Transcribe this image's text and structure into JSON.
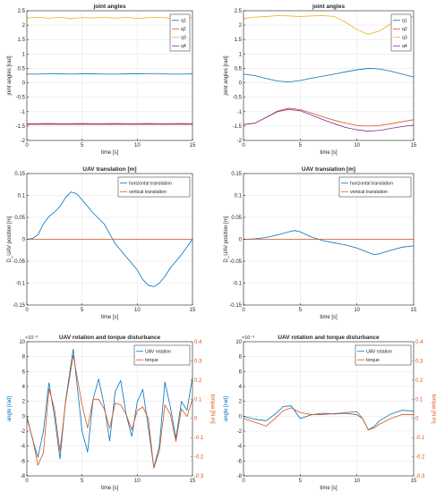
{
  "colors": {
    "blue": "#0072BD",
    "red": "#D95319",
    "yellow": "#EDB120",
    "purple": "#7E2F8E",
    "axis": "#262626",
    "grid": "#E6E6E6"
  },
  "chart_data": [
    {
      "type": "line",
      "title": "joint angles",
      "xlabel": "time [s]",
      "ylabel": "joint angles [rad]",
      "xlim": [
        0,
        15
      ],
      "ylim": [
        -2,
        2.5
      ],
      "xticks": [
        0,
        5,
        10,
        15
      ],
      "yticks": [
        -2,
        -1.5,
        -1,
        -0.5,
        0,
        0.5,
        1,
        1.5,
        2,
        2.5
      ],
      "ytick_labels": [
        "-2",
        "-1.5",
        "-1",
        "-0.5",
        "0",
        "0.5",
        "1",
        "1.5",
        "2",
        "2.5"
      ],
      "grid": true,
      "legend": "top-right",
      "series": [
        {
          "name": "q1",
          "color": "blue",
          "x": [
            0,
            1,
            2,
            3,
            4,
            5,
            6,
            7,
            8,
            9,
            10,
            11,
            12,
            13,
            14,
            15
          ],
          "y": [
            0.3,
            0.3,
            0.32,
            0.31,
            0.3,
            0.31,
            0.31,
            0.3,
            0.3,
            0.31,
            0.31,
            0.32,
            0.32,
            0.3,
            0.3,
            0.31
          ]
        },
        {
          "name": "q2",
          "color": "red",
          "x": [
            0,
            1,
            2,
            3,
            4,
            5,
            6,
            7,
            8,
            9,
            10,
            11,
            12,
            13,
            14,
            15
          ],
          "y": [
            -1.42,
            -1.42,
            -1.41,
            -1.42,
            -1.42,
            -1.41,
            -1.42,
            -1.42,
            -1.41,
            -1.42,
            -1.42,
            -1.41,
            -1.42,
            -1.42,
            -1.41,
            -1.42
          ]
        },
        {
          "name": "q3",
          "color": "yellow",
          "x": [
            0,
            1,
            2,
            3,
            4,
            5,
            6,
            7,
            8,
            9,
            10,
            11,
            12,
            13,
            14,
            15
          ],
          "y": [
            2.25,
            2.27,
            2.24,
            2.27,
            2.23,
            2.26,
            2.25,
            2.27,
            2.24,
            2.27,
            2.23,
            2.26,
            2.27,
            2.24,
            2.26,
            2.25
          ]
        },
        {
          "name": "q4",
          "color": "purple",
          "x": [
            0,
            1,
            2,
            3,
            4,
            5,
            6,
            7,
            8,
            9,
            10,
            11,
            12,
            13,
            14,
            15
          ],
          "y": [
            -1.44,
            -1.44,
            -1.44,
            -1.44,
            -1.44,
            -1.44,
            -1.44,
            -1.44,
            -1.44,
            -1.44,
            -1.44,
            -1.44,
            -1.44,
            -1.44,
            -1.44,
            -1.44
          ]
        }
      ]
    },
    {
      "type": "line",
      "title": "joint angles",
      "xlabel": "time [s]",
      "ylabel": "joint angles [rad]",
      "xlim": [
        0,
        15
      ],
      "ylim": [
        -2,
        2.5
      ],
      "xticks": [
        0,
        5,
        10,
        15
      ],
      "yticks": [
        -2,
        -1.5,
        -1,
        -0.5,
        0,
        0.5,
        1,
        1.5,
        2,
        2.5
      ],
      "ytick_labels": [
        "-2",
        "-1.5",
        "-1",
        "-0.5",
        "0",
        "0.5",
        "1",
        "1.5",
        "2",
        "2.5"
      ],
      "grid": true,
      "legend": "top-right",
      "series": [
        {
          "name": "q1",
          "color": "blue",
          "x": [
            0,
            1,
            2,
            3,
            4,
            5,
            6,
            7,
            8,
            9,
            10,
            11,
            12,
            13,
            14,
            15
          ],
          "y": [
            0.3,
            0.25,
            0.15,
            0.06,
            0.03,
            0.08,
            0.16,
            0.23,
            0.3,
            0.38,
            0.45,
            0.5,
            0.48,
            0.4,
            0.3,
            0.2
          ]
        },
        {
          "name": "q2",
          "color": "red",
          "x": [
            0,
            1,
            2,
            3,
            4,
            5,
            6,
            7,
            8,
            9,
            10,
            11,
            12,
            13,
            14,
            15
          ],
          "y": [
            -1.45,
            -1.4,
            -1.2,
            -0.98,
            -0.88,
            -0.93,
            -1.05,
            -1.18,
            -1.3,
            -1.4,
            -1.48,
            -1.5,
            -1.48,
            -1.42,
            -1.35,
            -1.28
          ]
        },
        {
          "name": "q3",
          "color": "yellow",
          "x": [
            0,
            1,
            2,
            3,
            4,
            5,
            6,
            7,
            8,
            9,
            10,
            11,
            12,
            13,
            14,
            15
          ],
          "y": [
            2.23,
            2.28,
            2.3,
            2.33,
            2.32,
            2.3,
            2.32,
            2.33,
            2.3,
            2.1,
            1.85,
            1.68,
            1.8,
            2.05,
            2.22,
            2.3
          ]
        },
        {
          "name": "q4",
          "color": "purple",
          "x": [
            0,
            1,
            2,
            3,
            4,
            5,
            6,
            7,
            8,
            9,
            10,
            11,
            12,
            13,
            14,
            15
          ],
          "y": [
            -1.45,
            -1.4,
            -1.2,
            -1.0,
            -0.92,
            -0.97,
            -1.12,
            -1.28,
            -1.42,
            -1.55,
            -1.63,
            -1.68,
            -1.65,
            -1.58,
            -1.52,
            -1.47
          ]
        }
      ]
    },
    {
      "type": "line",
      "title": "UAV translation [m]",
      "xlabel": "time [s]",
      "ylabel": "D_UAV position [m]",
      "xlim": [
        0,
        15
      ],
      "ylim": [
        -0.15,
        0.15
      ],
      "xticks": [
        0,
        5,
        10,
        15
      ],
      "yticks": [
        -0.15,
        -0.1,
        -0.05,
        0,
        0.05,
        0.1,
        0.15
      ],
      "ytick_labels": [
        "-0.15",
        "-0.1",
        "-0.05",
        "0",
        "0.05",
        "0.1",
        "0.15"
      ],
      "grid": true,
      "legend": "top-right",
      "series": [
        {
          "name": "horizontal translation",
          "color": "blue",
          "x": [
            0,
            0.5,
            1,
            1.5,
            2,
            2.5,
            3,
            3.5,
            4,
            4.5,
            5,
            6,
            7,
            8,
            9,
            10,
            10.5,
            11,
            11.5,
            12,
            12.5,
            13,
            14,
            15
          ],
          "y": [
            0,
            0.002,
            0.01,
            0.035,
            0.052,
            0.062,
            0.075,
            0.095,
            0.108,
            0.104,
            0.09,
            0.06,
            0.035,
            -0.01,
            -0.04,
            -0.07,
            -0.092,
            -0.105,
            -0.108,
            -0.1,
            -0.085,
            -0.065,
            -0.035,
            0
          ]
        },
        {
          "name": "vertical translation",
          "color": "red",
          "x": [
            0,
            15
          ],
          "y": [
            0,
            0
          ]
        }
      ]
    },
    {
      "type": "line",
      "title": "UAV translation [m]",
      "xlabel": "time [s]",
      "ylabel": "D_UAV position [m]",
      "xlim": [
        0,
        15
      ],
      "ylim": [
        -0.15,
        0.15
      ],
      "xticks": [
        0,
        5,
        10,
        15
      ],
      "yticks": [
        -0.15,
        -0.1,
        -0.05,
        0,
        0.05,
        0.1,
        0.15
      ],
      "ytick_labels": [
        "-0.15",
        "-0.1",
        "-0.05",
        "0",
        "0.05",
        "0.1",
        "0.15"
      ],
      "grid": true,
      "legend": "top-right",
      "series": [
        {
          "name": "horizontal translation",
          "color": "blue",
          "x": [
            0,
            1,
            2,
            3,
            4,
            4.5,
            5,
            6,
            7,
            8,
            9,
            10,
            11,
            11.5,
            12,
            13,
            14,
            15
          ],
          "y": [
            0,
            0.001,
            0.004,
            0.01,
            0.017,
            0.02,
            0.017,
            0.005,
            -0.003,
            -0.008,
            -0.013,
            -0.02,
            -0.03,
            -0.035,
            -0.033,
            -0.025,
            -0.018,
            -0.015
          ]
        },
        {
          "name": "vertical translation",
          "color": "red",
          "x": [
            0,
            15
          ],
          "y": [
            0,
            0
          ]
        }
      ]
    },
    {
      "type": "line",
      "title": "UAV rotation and torque disturbance",
      "xlabel": "time [s]",
      "ylabel": "angle [rad]",
      "y2label": "torque [N m]",
      "exponent": "×10⁻³",
      "xlim": [
        0,
        15
      ],
      "ylim": [
        -8,
        10
      ],
      "y2lim": [
        -0.3,
        0.4
      ],
      "xticks": [
        0,
        5,
        10,
        15
      ],
      "yticks": [
        -8,
        -6,
        -4,
        -2,
        0,
        2,
        4,
        6,
        8,
        10
      ],
      "ytick_labels": [
        "-8",
        "-6",
        "-4",
        "-2",
        "0",
        "2",
        "4",
        "6",
        "8",
        "10"
      ],
      "y2ticks": [
        -0.3,
        -0.2,
        -0.1,
        0,
        0.1,
        0.2,
        0.3,
        0.4
      ],
      "y2tick_labels": [
        "-0.3",
        "-0.2",
        "-0.1",
        "0",
        "0.1",
        "0.2",
        "0.3",
        "0.4"
      ],
      "grid": true,
      "legend": "top-right",
      "series": [
        {
          "name": "UAV rotation",
          "color": "blue",
          "axis": "left",
          "x": [
            0,
            0.5,
            1,
            1.5,
            2,
            2.5,
            3,
            3.5,
            4.2,
            5,
            5.5,
            6,
            6.5,
            7,
            7.5,
            8,
            8.5,
            9,
            9.5,
            10,
            10.5,
            11,
            11.5,
            12,
            12.5,
            13,
            13.5,
            14,
            14.5,
            15
          ],
          "y": [
            0,
            -3,
            -5.5,
            -2,
            4.5,
            0,
            -5.7,
            2,
            9,
            -2,
            -4.8,
            2.3,
            5,
            1.5,
            -3.3,
            3.3,
            4.8,
            0.2,
            -2.7,
            1.9,
            3.6,
            -1.5,
            -6.9,
            -4,
            4.6,
            1.2,
            -3,
            2,
            0.8,
            5.2
          ]
        },
        {
          "name": "torque",
          "color": "red",
          "axis": "right",
          "x": [
            0,
            0.5,
            1,
            1.5,
            2,
            2.5,
            3,
            3.5,
            4.2,
            5,
            5.5,
            6,
            6.5,
            7,
            7.5,
            8,
            8.5,
            9,
            9.5,
            10,
            10.5,
            11,
            11.5,
            12,
            12.5,
            13,
            13.5,
            14,
            14.5,
            15
          ],
          "y": [
            0,
            -0.1,
            -0.245,
            -0.18,
            0.155,
            0.05,
            -0.17,
            0.08,
            0.33,
            0.07,
            -0.05,
            0.1,
            0.1,
            0.05,
            -0.05,
            0.08,
            0.07,
            0.02,
            -0.06,
            0.04,
            0.06,
            0.0,
            -0.26,
            -0.17,
            0.07,
            0.02,
            -0.12,
            0.05,
            0.01,
            0.1
          ]
        }
      ]
    },
    {
      "type": "line",
      "title": "UAV rotation and torque disturbance",
      "xlabel": "time [s]",
      "ylabel": "angle [rad]",
      "y2label": "torque [N m]",
      "exponent": "×10⁻³",
      "xlim": [
        0,
        15
      ],
      "ylim": [
        -8,
        10
      ],
      "y2lim": [
        -0.3,
        0.4
      ],
      "xticks": [
        0,
        5,
        10,
        15
      ],
      "yticks": [
        -8,
        -6,
        -4,
        -2,
        0,
        2,
        4,
        6,
        8,
        10
      ],
      "ytick_labels": [
        "-8",
        "-6",
        "-4",
        "-2",
        "0",
        "2",
        "4",
        "6",
        "8",
        "10"
      ],
      "y2ticks": [
        -0.3,
        -0.2,
        -0.1,
        0,
        0.1,
        0.2,
        0.3,
        0.4
      ],
      "y2tick_labels": [
        "-0.3",
        "-0.2",
        "-0.1",
        "0",
        "0.1",
        "0.2",
        "0.3",
        "0.4"
      ],
      "grid": true,
      "legend": "top-right",
      "series": [
        {
          "name": "UAV rotation",
          "color": "blue",
          "axis": "left",
          "x": [
            0,
            1,
            2,
            2.8,
            3.5,
            4.2,
            5,
            6,
            7,
            8,
            9,
            10,
            10.5,
            11,
            11.5,
            12,
            13,
            14,
            15
          ],
          "y": [
            0,
            -0.4,
            -0.6,
            0.3,
            1.3,
            1.4,
            -0.3,
            0.2,
            0.4,
            0.3,
            0.4,
            0.2,
            -0.3,
            -1.8,
            -1.4,
            -0.6,
            0.3,
            0.8,
            0.7
          ]
        },
        {
          "name": "torque",
          "color": "red",
          "axis": "right",
          "x": [
            0,
            1,
            2,
            2.8,
            3.5,
            4.2,
            5,
            6,
            7,
            8,
            9,
            10,
            10.5,
            11,
            11.5,
            12,
            13,
            14,
            15
          ],
          "y": [
            0,
            -0.02,
            -0.04,
            0.0,
            0.04,
            0.055,
            0.03,
            0.02,
            0.02,
            0.025,
            0.03,
            0.035,
            0.0,
            -0.06,
            -0.05,
            -0.03,
            0.0,
            0.02,
            0.02
          ]
        }
      ]
    }
  ]
}
